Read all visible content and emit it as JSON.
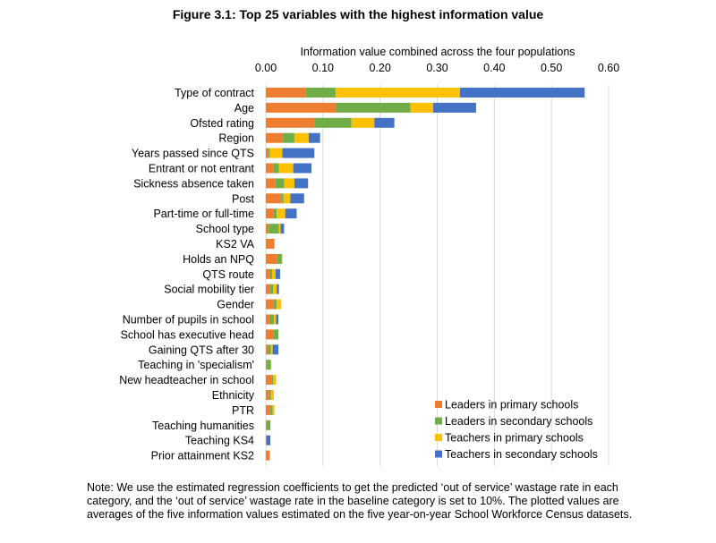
{
  "figure_title": "Figure 3.1: Top 25 variables with the highest information value",
  "note": "Note: We use the estimated regression coefficients to get the predicted ‘out of service’ wastage rate in each category, and the ‘out of service’ wastage rate in the baseline category is set to 10%. The plotted values are averages of the five information values estimated on the five year-on-year School Workforce Census datasets.",
  "chart_data": {
    "type": "bar",
    "orientation": "horizontal",
    "stacked": true,
    "title": "Figure 3.1: Top 25 variables with the highest information value",
    "xlabel": "Information value combined across the four populations",
    "ylabel": "",
    "xlim": [
      0,
      0.6
    ],
    "x_ticks": [
      "0.00",
      "0.10",
      "0.20",
      "0.30",
      "0.40",
      "0.50",
      "0.60"
    ],
    "x_axis_position": "top",
    "grid": true,
    "legend_position": "bottom-right",
    "categories": [
      "Type of contract",
      "Age",
      "Ofsted rating",
      "Region",
      "Years passed since QTS",
      "Entrant or not entrant",
      "Sickness absence taken",
      "Post",
      "Part-time or full-time",
      "School type",
      "KS2 VA",
      "Holds an NPQ",
      "QTS route",
      "Social mobility tier",
      "Gender",
      "Number of pupils in school",
      "School has executive head",
      "Gaining QTS after 30",
      "Teaching in 'specialism'",
      "New headteacher in school",
      "Ethnicity",
      "PTR",
      "Teaching humanities",
      "Teaching KS4",
      "Prior attainment KS2"
    ],
    "series": [
      {
        "name": "Leaders in primary schools",
        "color": "#ED7D31",
        "values": [
          0.07,
          0.123,
          0.085,
          0.03,
          0.005,
          0.013,
          0.017,
          0.027,
          0.014,
          0.005,
          0.015,
          0.02,
          0.007,
          0.008,
          0.014,
          0.007,
          0.013,
          0.004,
          0.002,
          0.01,
          0.006,
          0.008,
          0.001,
          0.001,
          0.007
        ]
      },
      {
        "name": "Leaders in secondary schools",
        "color": "#70AD47",
        "values": [
          0.052,
          0.13,
          0.065,
          0.02,
          0.002,
          0.01,
          0.015,
          0.004,
          0.005,
          0.018,
          0.0,
          0.008,
          0.004,
          0.005,
          0.005,
          0.007,
          0.009,
          0.005,
          0.007,
          0.003,
          0.003,
          0.004,
          0.007,
          0.0,
          0.0
        ]
      },
      {
        "name": "Teachers in primary schools",
        "color": "#FFC000",
        "values": [
          0.218,
          0.04,
          0.04,
          0.025,
          0.022,
          0.025,
          0.018,
          0.012,
          0.015,
          0.003,
          0.0,
          0.001,
          0.006,
          0.006,
          0.008,
          0.004,
          0.0,
          0.003,
          0.0,
          0.005,
          0.005,
          0.003,
          0.0,
          0.0,
          0.0
        ]
      },
      {
        "name": "Teachers in secondary schools",
        "color": "#4472C4",
        "values": [
          0.218,
          0.075,
          0.035,
          0.02,
          0.056,
          0.032,
          0.024,
          0.024,
          0.02,
          0.006,
          0.0,
          0.0,
          0.008,
          0.004,
          0.0,
          0.004,
          0.0,
          0.01,
          0.0,
          0.0,
          0.0,
          0.0,
          0.0,
          0.007,
          0.0
        ]
      }
    ]
  }
}
